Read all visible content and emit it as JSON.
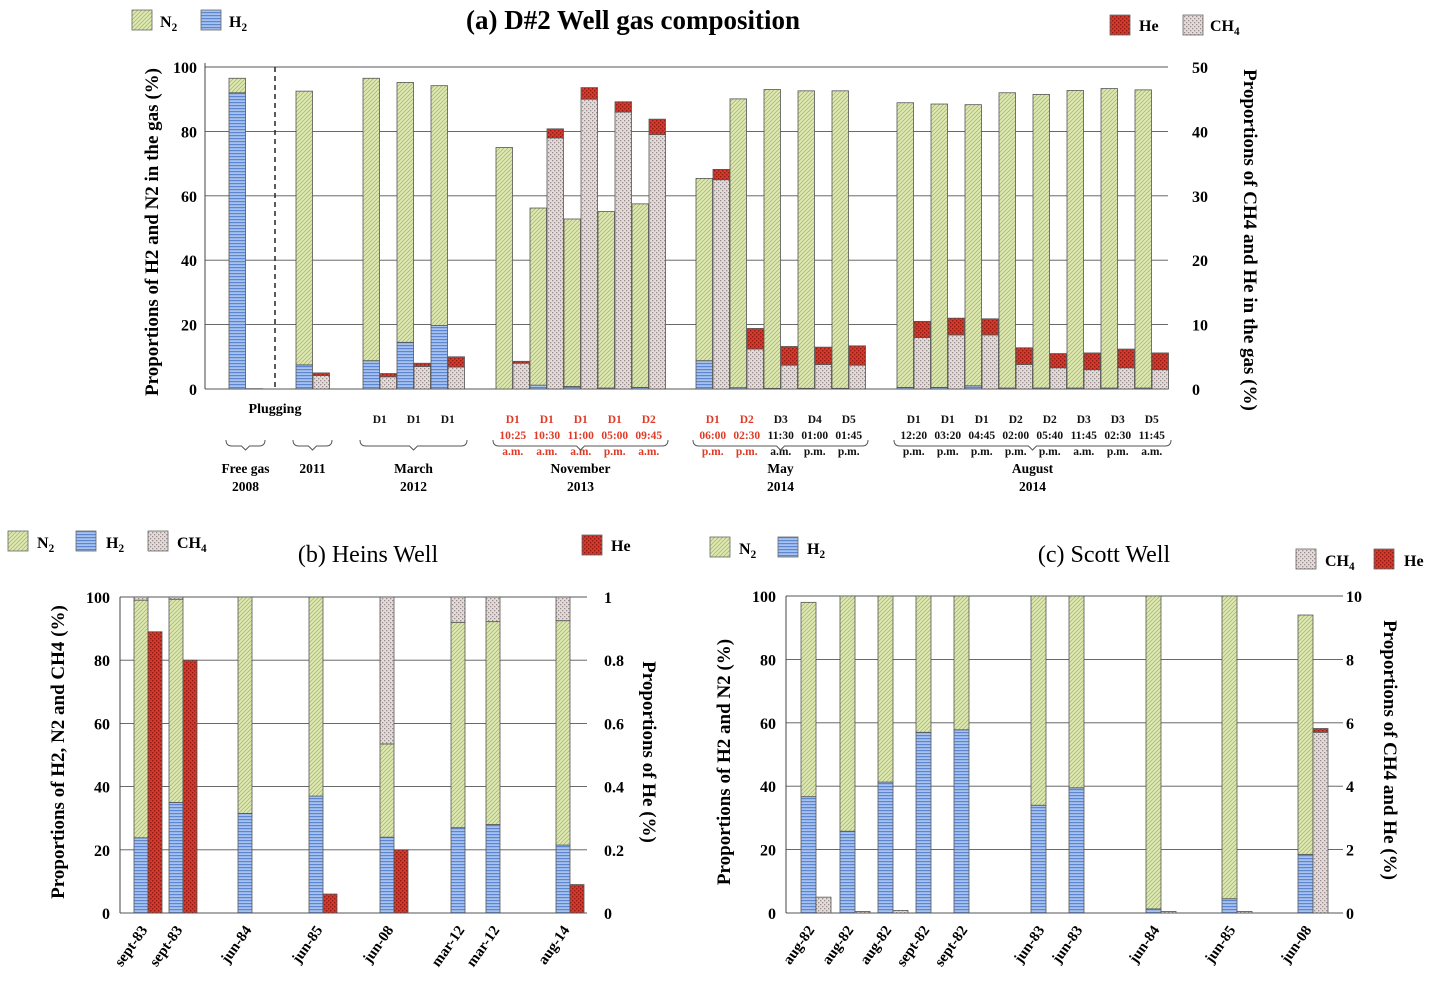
{
  "chart_data": [
    {
      "type": "bar",
      "title": "(a) D#2 Well gas composition",
      "ylabel": "Proportions of H2 and N2 in the gas (%)",
      "ylabel_right": "Proportions of CH4 and He in the gas (%)",
      "ylim": [
        0,
        100
      ],
      "ylim_right": [
        0,
        50
      ],
      "yticks": [
        "0",
        "20",
        "40",
        "60",
        "80",
        "100"
      ],
      "yticks_right": [
        "0",
        "10",
        "20",
        "30",
        "40",
        "50"
      ],
      "grid": true,
      "legend_left": [
        "N2",
        "H2"
      ],
      "legend_right": [
        "He",
        "CH4"
      ],
      "plugging_label": "Plugging",
      "colors": {
        "N2": "#d6e4a8",
        "H2": "#8fb0e6",
        "CH4": "#d2c8c8",
        "He": "#d9412f"
      },
      "groups": [
        {
          "label": "Free gas",
          "year": "2008",
          "bars": [
            {
              "t": "p",
              "h2": 92,
              "n2": 4.5
            },
            {
              "t": "s",
              "ch4": 0.05,
              "he": 0
            }
          ]
        },
        {
          "label": "",
          "year": "2011",
          "bars": [
            {
              "t": "p",
              "h2": 7.5,
              "n2": 85
            },
            {
              "t": "s",
              "ch4": 2.1,
              "he": 0.4
            }
          ]
        },
        {
          "label": "March",
          "year": "2012",
          "bars": [
            {
              "t": "p",
              "h2": 8.8,
              "n2": 87.7,
              "tick": [
                "D1"
              ]
            },
            {
              "t": "s",
              "ch4": 1.9,
              "he": 0.5
            },
            {
              "t": "p",
              "h2": 14.5,
              "n2": 80.7,
              "tick": [
                "D1"
              ]
            },
            {
              "t": "s",
              "ch4": 3.5,
              "he": 0.5
            },
            {
              "t": "p",
              "h2": 19.7,
              "n2": 74.5,
              "tick": [
                "D1"
              ]
            },
            {
              "t": "s",
              "ch4": 3.4,
              "he": 1.6
            }
          ]
        },
        {
          "label": "November",
          "year": "2013",
          "bars": [
            {
              "t": "p",
              "h2": 0,
              "n2": 75,
              "tick": [
                "D1",
                "10:25",
                "a.m."
              ],
              "red": true
            },
            {
              "t": "s",
              "ch4": 4.0,
              "he": 0.3
            },
            {
              "t": "p",
              "h2": 1.2,
              "n2": 55,
              "tick": [
                "D1",
                "10:30",
                "a.m."
              ],
              "red": true
            },
            {
              "t": "s",
              "ch4": 39,
              "he": 1.4
            },
            {
              "t": "p",
              "h2": 0.8,
              "n2": 52,
              "tick": [
                "D1",
                "11:00",
                "a.m."
              ],
              "red": true
            },
            {
              "t": "s",
              "ch4": 45,
              "he": 1.8
            },
            {
              "t": "p",
              "h2": 0.3,
              "n2": 54.8,
              "tick": [
                "D1",
                "05:00",
                "p.m."
              ],
              "red": true
            },
            {
              "t": "s",
              "ch4": 43,
              "he": 1.6
            },
            {
              "t": "p",
              "h2": 0.5,
              "n2": 57,
              "tick": [
                "D2",
                "09:45",
                "a.m."
              ],
              "red": true
            },
            {
              "t": "s",
              "ch4": 39.5,
              "he": 2.4
            }
          ]
        },
        {
          "label": "May",
          "year": "2014",
          "bars": [
            {
              "t": "p",
              "h2": 8.8,
              "n2": 56.6,
              "tick": [
                "D1",
                "06:00",
                "p.m."
              ],
              "red": true
            },
            {
              "t": "s",
              "ch4": 32.5,
              "he": 1.6
            },
            {
              "t": "p",
              "h2": 0.4,
              "n2": 89.7,
              "tick": [
                "D2",
                "02:30",
                "p.m."
              ],
              "red": true
            },
            {
              "t": "s",
              "ch4": 6.2,
              "he": 3.2
            },
            {
              "t": "p",
              "h2": 0.2,
              "n2": 92.8,
              "tick": [
                "D3",
                "11:30",
                "a.m."
              ]
            },
            {
              "t": "s",
              "ch4": 3.7,
              "he": 2.9
            },
            {
              "t": "p",
              "h2": 0.2,
              "n2": 92.4,
              "tick": [
                "D4",
                "01:00",
                "p.m."
              ]
            },
            {
              "t": "s",
              "ch4": 3.8,
              "he": 2.7
            },
            {
              "t": "p",
              "h2": 0.2,
              "n2": 92.4,
              "tick": [
                "D5",
                "01:45",
                "p.m."
              ]
            },
            {
              "t": "s",
              "ch4": 3.7,
              "he": 3.0
            }
          ]
        },
        {
          "label": "August",
          "year": "2014",
          "bars": [
            {
              "t": "p",
              "h2": 0.5,
              "n2": 88.4,
              "tick": [
                "D1",
                "12:20",
                "p.m."
              ]
            },
            {
              "t": "s",
              "ch4": 8.0,
              "he": 2.5
            },
            {
              "t": "p",
              "h2": 0.5,
              "n2": 88.0,
              "tick": [
                "D1",
                "03:20",
                "p.m."
              ]
            },
            {
              "t": "s",
              "ch4": 8.4,
              "he": 2.6
            },
            {
              "t": "p",
              "h2": 1.0,
              "n2": 87.3,
              "tick": [
                "D1",
                "04:45",
                "p.m."
              ]
            },
            {
              "t": "s",
              "ch4": 8.4,
              "he": 2.5
            },
            {
              "t": "p",
              "h2": 0.3,
              "n2": 91.7,
              "tick": [
                "D2",
                "02:00",
                "p.m."
              ]
            },
            {
              "t": "s",
              "ch4": 3.8,
              "he": 2.6
            },
            {
              "t": "p",
              "h2": 0.3,
              "n2": 91.2,
              "tick": [
                "D2",
                "05:40",
                "p.m."
              ]
            },
            {
              "t": "s",
              "ch4": 3.3,
              "he": 2.2
            },
            {
              "t": "p",
              "h2": 0.3,
              "n2": 92.4,
              "tick": [
                "D3",
                "11:45",
                "a.m."
              ]
            },
            {
              "t": "s",
              "ch4": 3.0,
              "he": 2.6
            },
            {
              "t": "p",
              "h2": 0.3,
              "n2": 93.0,
              "tick": [
                "D3",
                "02:30",
                "p.m."
              ]
            },
            {
              "t": "s",
              "ch4": 3.3,
              "he": 2.9
            },
            {
              "t": "p",
              "h2": 0.3,
              "n2": 92.6,
              "tick": [
                "D5",
                "11:45",
                "a.m."
              ]
            },
            {
              "t": "s",
              "ch4": 3.0,
              "he": 2.6
            }
          ]
        }
      ]
    },
    {
      "type": "bar",
      "title": "(b) Heins Well",
      "ylabel": "Proportions of H2, N2 and CH4 (%)",
      "ylabel_right": "Proportions of He (%)",
      "ylim": [
        0,
        100
      ],
      "ylim_right": [
        0,
        1
      ],
      "yticks": [
        "0",
        "20",
        "40",
        "60",
        "80",
        "100"
      ],
      "yticks_right": [
        "0",
        "0.2",
        "0.4",
        "0.6",
        "0.8",
        "1"
      ],
      "grid": true,
      "legend_left": [
        "N2",
        "H2",
        "CH4"
      ],
      "legend_right": [
        "He"
      ],
      "categories": [
        "sept-83",
        "sept-83",
        "jun-84",
        "jun-85",
        "jun-08",
        "mar-12",
        "mar-12",
        "aug-14"
      ],
      "H2": [
        23.8,
        35,
        31.5,
        37,
        24,
        27,
        28,
        21.5
      ],
      "N2": [
        75.2,
        64.3,
        68.5,
        63,
        29.5,
        65,
        64.2,
        71
      ],
      "CH4": [
        1,
        0.7,
        0,
        0,
        46.5,
        8,
        7.8,
        7.5
      ],
      "He": [
        0.89,
        0.8,
        0,
        0.06,
        0.2,
        0,
        0,
        0.09
      ]
    },
    {
      "type": "bar",
      "title": "(c) Scott Well",
      "ylabel": "Proportions of H2 and N2 (%)",
      "ylabel_right": "Proportions of CH4 and He (%)",
      "ylim": [
        0,
        100
      ],
      "ylim_right": [
        0,
        10
      ],
      "yticks": [
        "0",
        "20",
        "40",
        "60",
        "80",
        "100"
      ],
      "yticks_right": [
        "0",
        "2",
        "4",
        "6",
        "8",
        "10"
      ],
      "grid": true,
      "legend_left": [
        "N2",
        "H2"
      ],
      "legend_right": [
        "CH4",
        "He"
      ],
      "categories": [
        "aug-82",
        "aug-82",
        "aug-82",
        "sept-82",
        "sept-82",
        "jun-83",
        "jun-83",
        "jun-84",
        "jun-85",
        "jun-08"
      ],
      "H2": [
        36.7,
        25.8,
        41.3,
        57,
        57.8,
        34,
        39.5,
        1.3,
        4.5,
        18.5
      ],
      "N2": [
        61.3,
        74.2,
        58.7,
        43,
        42.2,
        66,
        60.5,
        98.7,
        95.5,
        75.5
      ],
      "CH4": [
        0.5,
        0.05,
        0.08,
        0,
        0,
        0,
        0,
        0.05,
        0.05,
        5.7
      ],
      "He": [
        0,
        0,
        0,
        0,
        0,
        0,
        0,
        0,
        0,
        0.12
      ]
    }
  ]
}
